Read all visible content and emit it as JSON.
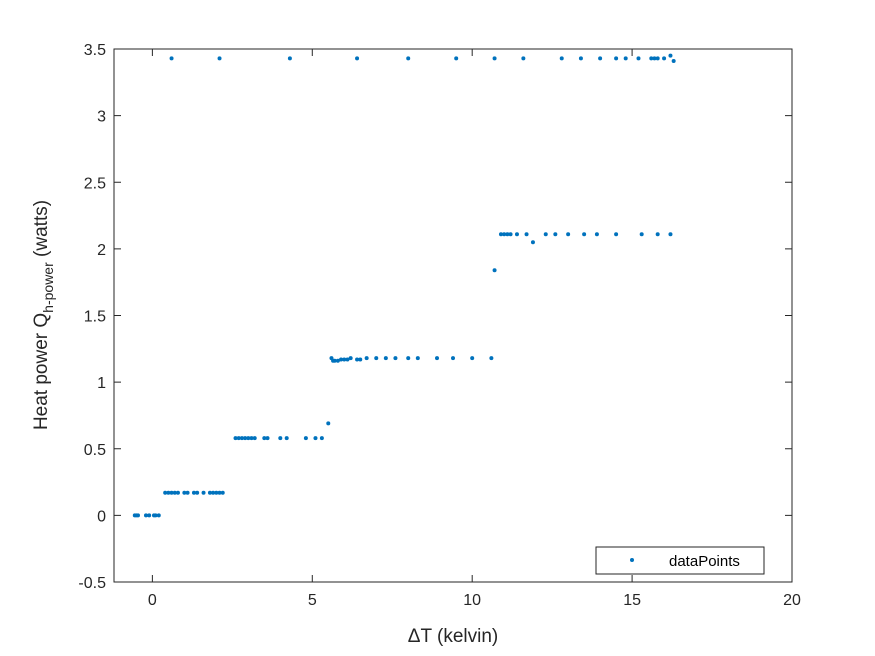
{
  "chart_data": {
    "type": "scatter",
    "xlabel": "ΔT (kelvin)",
    "ylabel_prefix": "Heat power Q",
    "ylabel_subscript": "h-power",
    "ylabel_suffix": " (watts)",
    "xlim": [
      -1.2,
      20
    ],
    "ylim": [
      -0.5,
      3.5
    ],
    "xticks": [
      0,
      5,
      10,
      15,
      20
    ],
    "yticks": [
      -0.5,
      0,
      0.5,
      1,
      1.5,
      2,
      2.5,
      3,
      3.5
    ],
    "xtick_labels": [
      "0",
      "5",
      "10",
      "15",
      "20"
    ],
    "ytick_labels": [
      "-0.5",
      "0",
      "0.5",
      "1",
      "1.5",
      "2",
      "2.5",
      "3",
      "3.5"
    ],
    "grid": false,
    "legend_position": "bottom-right",
    "series": [
      {
        "name": "dataPoints",
        "color": "#0072BD",
        "points": [
          [
            -0.55,
            0.0
          ],
          [
            -0.5,
            0.0
          ],
          [
            -0.45,
            0.0
          ],
          [
            -0.2,
            0.0
          ],
          [
            -0.1,
            0.0
          ],
          [
            0.05,
            0.0
          ],
          [
            0.1,
            0.0
          ],
          [
            0.2,
            0.0
          ],
          [
            0.4,
            0.17
          ],
          [
            0.5,
            0.17
          ],
          [
            0.6,
            0.17
          ],
          [
            0.7,
            0.17
          ],
          [
            0.8,
            0.17
          ],
          [
            1.0,
            0.17
          ],
          [
            1.1,
            0.17
          ],
          [
            1.3,
            0.17
          ],
          [
            1.4,
            0.17
          ],
          [
            1.6,
            0.17
          ],
          [
            1.8,
            0.17
          ],
          [
            1.9,
            0.17
          ],
          [
            2.0,
            0.17
          ],
          [
            2.1,
            0.17
          ],
          [
            2.2,
            0.17
          ],
          [
            2.6,
            0.58
          ],
          [
            2.7,
            0.58
          ],
          [
            2.8,
            0.58
          ],
          [
            2.9,
            0.58
          ],
          [
            3.0,
            0.58
          ],
          [
            3.1,
            0.58
          ],
          [
            3.2,
            0.58
          ],
          [
            3.5,
            0.58
          ],
          [
            3.6,
            0.58
          ],
          [
            4.0,
            0.58
          ],
          [
            4.2,
            0.58
          ],
          [
            4.8,
            0.58
          ],
          [
            5.1,
            0.58
          ],
          [
            5.3,
            0.58
          ],
          [
            5.5,
            0.69
          ],
          [
            5.6,
            1.18
          ],
          [
            5.65,
            1.16
          ],
          [
            5.7,
            1.16
          ],
          [
            5.8,
            1.16
          ],
          [
            5.9,
            1.17
          ],
          [
            6.0,
            1.17
          ],
          [
            6.1,
            1.17
          ],
          [
            6.2,
            1.18
          ],
          [
            6.4,
            1.17
          ],
          [
            6.5,
            1.17
          ],
          [
            6.7,
            1.18
          ],
          [
            7.0,
            1.18
          ],
          [
            7.3,
            1.18
          ],
          [
            7.6,
            1.18
          ],
          [
            8.0,
            1.18
          ],
          [
            8.3,
            1.18
          ],
          [
            8.9,
            1.18
          ],
          [
            9.4,
            1.18
          ],
          [
            10.0,
            1.18
          ],
          [
            10.6,
            1.18
          ],
          [
            10.7,
            1.84
          ],
          [
            10.9,
            2.11
          ],
          [
            11.0,
            2.11
          ],
          [
            11.1,
            2.11
          ],
          [
            11.2,
            2.11
          ],
          [
            11.4,
            2.11
          ],
          [
            11.7,
            2.11
          ],
          [
            11.9,
            2.05
          ],
          [
            12.3,
            2.11
          ],
          [
            12.6,
            2.11
          ],
          [
            13.0,
            2.11
          ],
          [
            13.5,
            2.11
          ],
          [
            13.9,
            2.11
          ],
          [
            14.5,
            2.11
          ],
          [
            15.3,
            2.11
          ],
          [
            15.8,
            2.11
          ],
          [
            16.2,
            2.11
          ],
          [
            0.6,
            3.43
          ],
          [
            2.1,
            3.43
          ],
          [
            4.3,
            3.43
          ],
          [
            6.4,
            3.43
          ],
          [
            8.0,
            3.43
          ],
          [
            9.5,
            3.43
          ],
          [
            10.7,
            3.43
          ],
          [
            11.6,
            3.43
          ],
          [
            12.8,
            3.43
          ],
          [
            13.4,
            3.43
          ],
          [
            14.0,
            3.43
          ],
          [
            14.5,
            3.43
          ],
          [
            14.8,
            3.43
          ],
          [
            15.2,
            3.43
          ],
          [
            15.6,
            3.43
          ],
          [
            15.7,
            3.43
          ],
          [
            15.8,
            3.43
          ],
          [
            16.0,
            3.43
          ],
          [
            16.2,
            3.45
          ],
          [
            16.3,
            3.41
          ]
        ]
      }
    ]
  }
}
